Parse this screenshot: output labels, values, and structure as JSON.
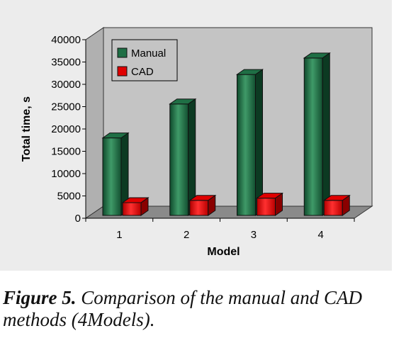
{
  "figure": {
    "caption_label": "Figure 5.",
    "caption_text": "Comparison of the manual and CAD methods (4Models)."
  },
  "colors": {
    "manual": "#1f6f45",
    "cad": "#e00000",
    "plot_background": "#c4c4c4",
    "floor": "#8a8a8a",
    "frame_background": "#ececec"
  },
  "chart_data": {
    "type": "bar",
    "categories": [
      "1",
      "2",
      "3",
      "4"
    ],
    "series": [
      {
        "name": "Manual",
        "values": [
          18000,
          25600,
          32200,
          35900
        ]
      },
      {
        "name": "CAD",
        "values": [
          3500,
          4000,
          4500,
          4000
        ]
      }
    ],
    "xlabel": "Model",
    "ylabel": "Total time, s",
    "ylim": [
      0,
      40000
    ],
    "yticks": [
      0,
      5000,
      10000,
      15000,
      20000,
      25000,
      30000,
      35000,
      40000
    ],
    "grid": false,
    "legend_position": "top-left",
    "style": "3d-bar"
  }
}
